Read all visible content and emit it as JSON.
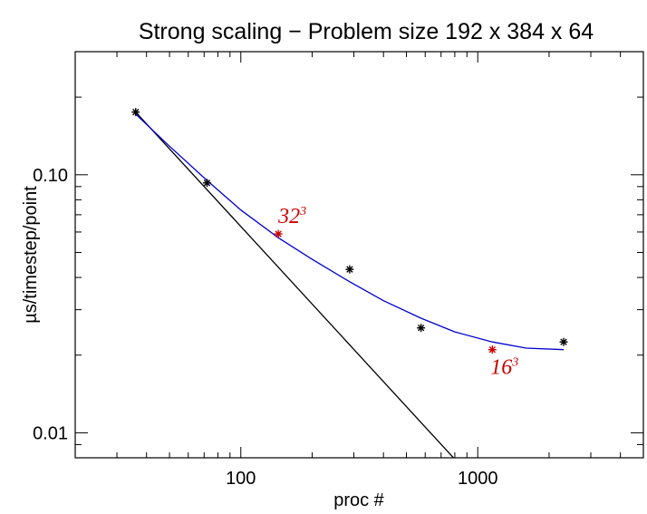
{
  "chart_data": {
    "type": "scatter",
    "title": "Strong scaling − Problem size 192 x 384 x 64",
    "xlabel": "proc #",
    "ylabel": "µs/timestep/point",
    "xscale": "log",
    "yscale": "log",
    "xlim": [
      20,
      5000
    ],
    "ylim": [
      0.008,
      0.3
    ],
    "x_tick_labels": [
      "100",
      "1000"
    ],
    "x_tick_values": [
      100,
      1000
    ],
    "y_tick_labels": [
      "0.10",
      "0.01"
    ],
    "y_tick_values": [
      0.1,
      0.01
    ],
    "grid": false,
    "legend": "none",
    "series": [
      {
        "kind": "points",
        "marker": "asterisk",
        "color": "#000000",
        "x": [
          36,
          72,
          288,
          576,
          2304
        ],
        "y": [
          0.175,
          0.093,
          0.043,
          0.0255,
          0.0225
        ]
      },
      {
        "kind": "points",
        "marker": "asterisk",
        "color": "#cc0000",
        "x": [
          144,
          1152
        ],
        "y": [
          0.059,
          0.021
        ]
      },
      {
        "kind": "line",
        "style": "ideal",
        "color": "#000000",
        "x": [
          36,
          800
        ],
        "y": [
          0.175,
          0.0079
        ]
      },
      {
        "kind": "line",
        "style": "fit",
        "color": "#0000cc",
        "x": [
          36,
          50,
          72,
          100,
          144,
          200,
          288,
          400,
          576,
          800,
          1152,
          1600,
          2304
        ],
        "y": [
          0.172,
          0.129,
          0.095,
          0.073,
          0.057,
          0.047,
          0.0385,
          0.0325,
          0.0278,
          0.0246,
          0.0225,
          0.0213,
          0.021
        ]
      }
    ],
    "annotations": [
      {
        "base": "32",
        "sup": "3",
        "x": 144,
        "y": 0.059,
        "color": "#cc0000"
      },
      {
        "base": "16",
        "sup": "3",
        "x": 1152,
        "y": 0.021,
        "color": "#cc0000"
      }
    ]
  }
}
